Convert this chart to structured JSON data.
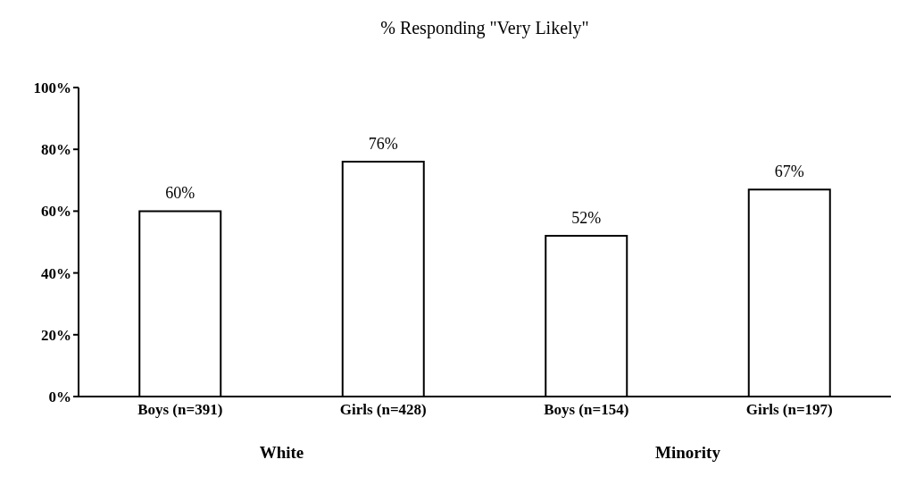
{
  "chart_data": {
    "type": "bar",
    "title": "% Responding \"Very Likely\"",
    "categories": [
      "Boys (n=391)",
      "Girls (n=428)",
      "Boys (n=154)",
      "Girls (n=197)"
    ],
    "values": [
      60,
      76,
      52,
      67
    ],
    "color": "#ffffff",
    "value_labels": [
      "60%",
      "76%",
      "52%",
      "67%"
    ],
    "ylim": [
      0,
      100
    ],
    "yticks": [
      {
        "value": 0,
        "label": "0%"
      },
      {
        "value": 20,
        "label": "20%"
      },
      {
        "value": 40,
        "label": "40%"
      },
      {
        "value": 60,
        "label": "60%"
      },
      {
        "value": 80,
        "label": "80%"
      },
      {
        "value": 100,
        "label": "100%"
      }
    ],
    "annotations": [
      "White",
      "Minority"
    ],
    "grid": false,
    "legend": false
  }
}
